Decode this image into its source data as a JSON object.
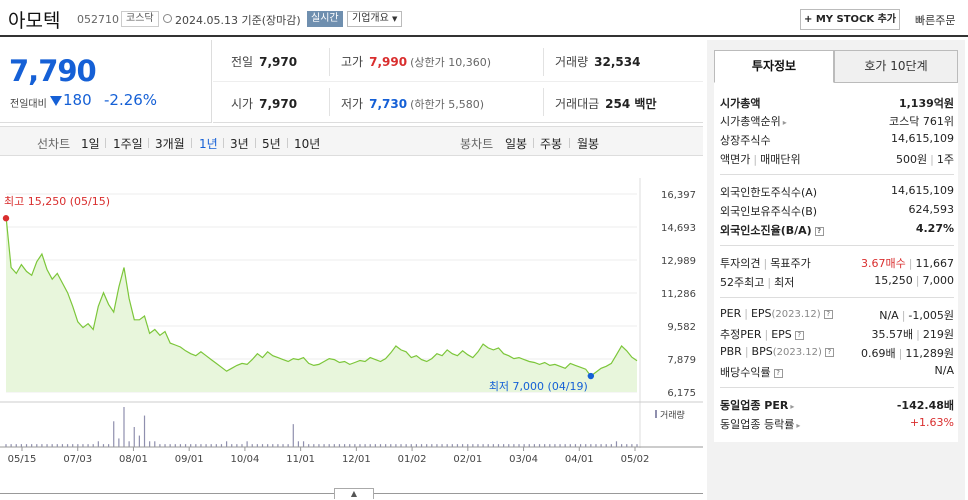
{
  "header": {
    "name": "아모텍",
    "code": "052710",
    "market": "코스닥",
    "date": "2024.05.13 기준(장마감)",
    "realtime": "실시간",
    "overview": "기업개요",
    "mystock": "+ MY STOCK 추가",
    "quick_order": "빠른주문"
  },
  "price": {
    "current": "7,790",
    "change_label": "전일대비",
    "change": "180",
    "change_pct": "-2.26%"
  },
  "quote": {
    "prev_close": {
      "label": "전일",
      "value": "7,970"
    },
    "high": {
      "label": "고가",
      "value": "7,990",
      "sub": "(상한가 10,360)"
    },
    "volume": {
      "label": "거래량",
      "value": "32,534"
    },
    "open": {
      "label": "시가",
      "value": "7,970"
    },
    "low": {
      "label": "저가",
      "value": "7,730",
      "sub": "(하한가 5,580)"
    },
    "amount": {
      "label": "거래대금",
      "value": "254 백만"
    }
  },
  "periods": {
    "line_label": "선차트",
    "line_items": [
      "1일",
      "1주일",
      "3개월",
      "1년",
      "3년",
      "5년",
      "10년"
    ],
    "candle_label": "봉차트",
    "candle_items": [
      "일봉",
      "주봉",
      "월봉"
    ]
  },
  "chart_data": {
    "type": "area",
    "y_ticks": [
      "16,397",
      "14,693",
      "12,989",
      "11,286",
      "9,582",
      "7,879",
      "6,175"
    ],
    "ylim": [
      6175,
      16397
    ],
    "x_ticks": [
      "05/15",
      "07/03",
      "08/01",
      "09/01",
      "10/04",
      "11/01",
      "12/01",
      "01/02",
      "02/01",
      "03/04",
      "04/01",
      "05/02"
    ],
    "high_annotation": "최고 15,250 (05/15)",
    "low_annotation": "최저 7,000 (04/19)",
    "volume_label": "거래량",
    "colors": {
      "line": "#7cc63a",
      "fill": "#e8f6dc",
      "high": "#d92e2e",
      "low": "#1560d6",
      "volume": "#8f8fae"
    },
    "series": [
      {
        "values": [
          15250,
          12600,
          12300,
          12750,
          12400,
          12200,
          12900,
          13300,
          12500,
          12000,
          12300,
          11800,
          11300,
          10600,
          9800,
          9500,
          9700,
          9400,
          10600,
          11300,
          10700,
          10300,
          11600,
          12600,
          11000,
          9900,
          9900,
          10100,
          9200,
          9400,
          9100,
          9300,
          8700,
          8600,
          8500,
          8300,
          8150,
          8050,
          8250,
          8050,
          7850,
          7650,
          7450,
          7250,
          7400,
          7550,
          7650,
          7600,
          7850,
          8150,
          7950,
          8250,
          8050,
          7950,
          7850,
          7750,
          7900,
          7850,
          7950,
          7650,
          7550,
          7600,
          7750,
          7900,
          7850,
          7700,
          7750,
          7600,
          7700,
          7800,
          7750,
          7950,
          7850,
          7750,
          7900,
          8200,
          8550,
          8350,
          8250,
          7950,
          8050,
          7850,
          7750,
          7900,
          8150,
          8050,
          8350,
          8150,
          8050,
          8300,
          8100,
          7950,
          8250,
          8650,
          8450,
          8350,
          8450,
          8150,
          8050,
          7900,
          7950,
          7850,
          7750,
          7700,
          7600,
          7700,
          7550,
          7600,
          7500,
          7400,
          7650,
          7550,
          7450,
          7350,
          7000,
          7200,
          7400,
          7500,
          7650,
          8100,
          8550,
          8300,
          7970,
          7790
        ]
      }
    ],
    "volume": [
      1,
      1,
      1,
      1,
      1,
      1,
      1,
      1,
      1,
      1,
      1,
      1,
      1,
      1,
      1,
      1,
      1,
      1,
      2,
      1,
      1,
      9,
      3,
      14,
      2,
      7,
      4,
      11,
      2,
      2,
      1,
      1,
      1,
      1,
      1,
      1,
      1,
      1,
      1,
      1,
      1,
      1,
      1,
      2,
      1,
      1,
      1,
      2,
      1,
      1,
      1,
      1,
      1,
      1,
      1,
      1,
      8,
      2,
      2,
      1,
      1,
      1,
      1,
      1,
      1,
      1,
      1,
      1,
      1,
      1,
      1,
      1,
      1,
      1,
      1,
      1,
      1,
      1,
      1,
      1,
      1,
      1,
      1,
      1,
      1,
      1,
      1,
      1,
      1,
      1,
      1,
      1,
      1,
      1,
      1,
      1,
      1,
      1,
      1,
      1,
      1,
      1,
      1,
      1,
      1,
      1,
      1,
      1,
      1,
      1,
      1,
      1,
      1,
      1,
      1,
      1,
      1,
      1,
      1,
      2,
      1,
      1,
      1,
      1
    ]
  },
  "side": {
    "tab_active": "투자정보",
    "tab_inactive": "호가 10단계",
    "market_cap": {
      "label": "시가총액",
      "value": "1,139억원"
    },
    "cap_rank": {
      "label": "시가총액순위",
      "value": "코스닥 761위"
    },
    "listed_shares": {
      "label": "상장주식수",
      "value": "14,615,109"
    },
    "face_value": {
      "label": "액면가",
      "label2": "매매단위",
      "value": "500원",
      "value2": "1주"
    },
    "foreign_limit": {
      "label": "외국인한도주식수(A)",
      "value": "14,615,109"
    },
    "foreign_hold": {
      "label": "외국인보유주식수(B)",
      "value": "624,593"
    },
    "foreign_ratio": {
      "label": "외국인소진율(B/A)",
      "value": "4.27%"
    },
    "opinion": {
      "label": "투자의견",
      "label2": "목표주가",
      "value": "3.67매수",
      "value2": "11,667"
    },
    "week52": {
      "label": "52주최고",
      "label2": "최저",
      "value": "15,250",
      "value2": "7,000"
    },
    "per": {
      "label": "PER",
      "label2": "EPS",
      "date": "(2023.12)",
      "value": "N/A",
      "value2": "-1,005원"
    },
    "est_per": {
      "label": "추정PER",
      "label2": "EPS",
      "value": "35.57배",
      "value2": "219원"
    },
    "pbr": {
      "label": "PBR",
      "label2": "BPS",
      "date": "(2023.12)",
      "value": "0.69배",
      "value2": "11,289원"
    },
    "dividend": {
      "label": "배당수익률",
      "value": "N/A"
    },
    "industry_per": {
      "label": "동일업종 PER",
      "value": "-142.48배"
    },
    "industry_rate": {
      "label": "동일업종 등락률",
      "value": "+1.63%"
    }
  }
}
